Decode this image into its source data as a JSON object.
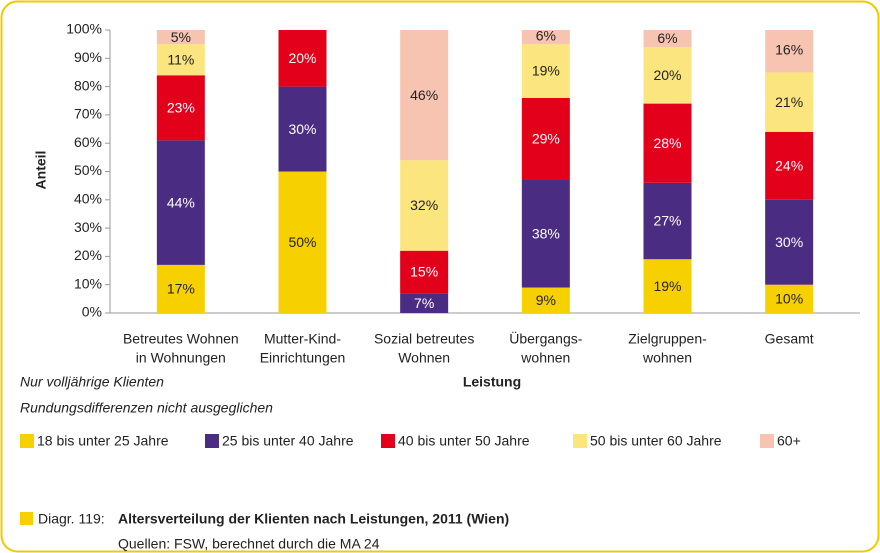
{
  "chart_data": {
    "type": "stacked_bar",
    "title": "Altersverteilung der Klienten nach Leistungen, 2011 (Wien)",
    "figure_label": "Diagr. 119:",
    "source": "Quellen: FSW, berechnet durch die MA 24",
    "y_label": "Anteil",
    "x_label": "Leistung",
    "notes": [
      "Nur volljährige Klienten",
      "Rundungsdifferenzen nicht ausgeglichen"
    ],
    "categories": [
      [
        "Betreutes Wohnen",
        "in Wohnungen"
      ],
      [
        "Mutter-Kind-",
        "Einrichtungen"
      ],
      [
        "Sozial betreutes",
        "Wohnen"
      ],
      [
        "Übergangs-",
        "wohnen"
      ],
      [
        "Zielgruppen-",
        "wohnen"
      ],
      [
        "Gesamt"
      ]
    ],
    "series": [
      {
        "name": "18 bis unter 25 Jahre",
        "color": "#f7d000",
        "label_color": "#222222",
        "values": [
          17,
          50,
          0,
          9,
          19,
          10
        ],
        "value_labels": [
          "17%",
          "50%",
          null,
          "9%",
          "19%",
          "10%"
        ]
      },
      {
        "name": "25 bis unter 40 Jahre",
        "color": "#4a2c83",
        "label_color": "#ffffff",
        "values": [
          44,
          30,
          7,
          38,
          27,
          30
        ],
        "value_labels": [
          "44%",
          "30%",
          "7%",
          "38%",
          "27%",
          "30%"
        ]
      },
      {
        "name": "40 bis unter 50 Jahre",
        "color": "#e3001b",
        "label_color": "#ffffff",
        "values": [
          23,
          20,
          15,
          29,
          28,
          24
        ],
        "value_labels": [
          "23%",
          "20%",
          "15%",
          "29%",
          "28%",
          "24%"
        ]
      },
      {
        "name": "50 bis unter 60 Jahre",
        "color": "#fbe57e",
        "label_color": "#222222",
        "values": [
          11,
          0,
          32,
          19,
          20,
          21
        ],
        "value_labels": [
          "11%",
          null,
          "32%",
          "19%",
          "20%",
          "21%"
        ]
      },
      {
        "name": "60+",
        "color": "#f8c4b2",
        "label_color": "#222222",
        "values": [
          5,
          0,
          46,
          6,
          6,
          16
        ],
        "value_labels": [
          "5%",
          null,
          "46%",
          "6%",
          "6%",
          "16%"
        ]
      }
    ],
    "ylim": [
      0,
      100
    ],
    "yticks": [
      {
        "value": 0,
        "label": "0%"
      },
      {
        "value": 10,
        "label": "10%"
      },
      {
        "value": 20,
        "label": "20%"
      },
      {
        "value": 30,
        "label": "30%"
      },
      {
        "value": 40,
        "label": "40%"
      },
      {
        "value": 50,
        "label": "50%"
      },
      {
        "value": 60,
        "label": "60%"
      },
      {
        "value": 70,
        "label": "70%"
      },
      {
        "value": 80,
        "label": "80%"
      },
      {
        "value": 90,
        "label": "90%"
      },
      {
        "value": 100,
        "label": "100%"
      }
    ],
    "grid": false
  }
}
